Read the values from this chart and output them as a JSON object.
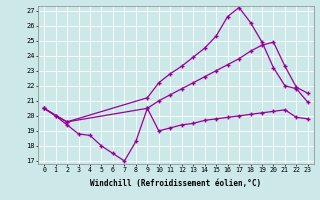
{
  "xlabel": "Windchill (Refroidissement éolien,°C)",
  "bg_color": "#cce8e8",
  "line_color": "#990099",
  "grid_color": "#ffffff",
  "xmin": -0.5,
  "xmax": 23.5,
  "ymin": 16.8,
  "ymax": 27.3,
  "yticks": [
    17,
    18,
    19,
    20,
    21,
    22,
    23,
    24,
    25,
    26,
    27
  ],
  "xticks": [
    0,
    1,
    2,
    3,
    4,
    5,
    6,
    7,
    8,
    9,
    10,
    11,
    12,
    13,
    14,
    15,
    16,
    17,
    18,
    19,
    20,
    21,
    22,
    23
  ],
  "line1_x": [
    0,
    1,
    2,
    3,
    4,
    5,
    6,
    7,
    8,
    9,
    10,
    11,
    12,
    13,
    14,
    15,
    16,
    17,
    18,
    19,
    20,
    21,
    22,
    23
  ],
  "line1_y": [
    20.5,
    20.0,
    19.4,
    18.8,
    18.7,
    18.0,
    17.5,
    17.0,
    18.3,
    20.5,
    19.0,
    19.2,
    19.4,
    19.5,
    19.7,
    19.8,
    19.9,
    20.0,
    20.1,
    20.2,
    20.3,
    20.4,
    19.9,
    19.8
  ],
  "line2_x": [
    0,
    1,
    2,
    9,
    10,
    11,
    12,
    13,
    14,
    15,
    16,
    17,
    18,
    19,
    20,
    21,
    22,
    23
  ],
  "line2_y": [
    20.5,
    20.0,
    19.6,
    21.2,
    22.2,
    22.8,
    23.3,
    23.9,
    24.5,
    25.3,
    26.6,
    27.2,
    26.2,
    24.9,
    23.2,
    22.0,
    21.8,
    20.9
  ],
  "line3_x": [
    0,
    2,
    9,
    10,
    11,
    12,
    13,
    14,
    15,
    16,
    17,
    18,
    19,
    20,
    21,
    22,
    23
  ],
  "line3_y": [
    20.5,
    19.6,
    20.5,
    21.0,
    21.4,
    21.8,
    22.2,
    22.6,
    23.0,
    23.4,
    23.8,
    24.3,
    24.7,
    24.9,
    23.3,
    21.9,
    21.5
  ]
}
